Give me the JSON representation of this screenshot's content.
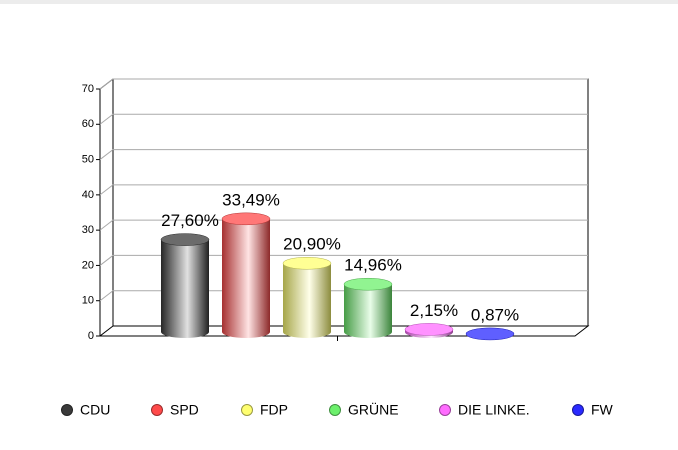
{
  "chart_data": {
    "type": "bar",
    "categories": [
      "CDU",
      "SPD",
      "FDP",
      "GRÜNE",
      "DIE LINKE.",
      "FW"
    ],
    "values": [
      27.6,
      33.49,
      20.9,
      14.96,
      2.15,
      0.87
    ],
    "value_labels": [
      "27,60%",
      "33,49%",
      "20,90%",
      "14,96%",
      "2,15%",
      "0,87%"
    ],
    "colors": [
      "#3a3a3a",
      "#ff4a4a",
      "#ffff70",
      "#6cf06c",
      "#ff6cff",
      "#2a2aff"
    ],
    "ylim": [
      0,
      70
    ],
    "yticks": [
      0,
      10,
      20,
      30,
      40,
      50,
      60,
      70
    ],
    "grid": true
  }
}
